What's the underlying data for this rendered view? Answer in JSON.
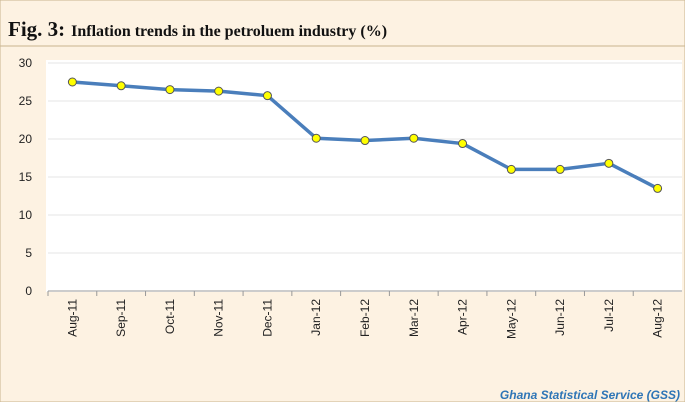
{
  "chart_data": {
    "type": "line",
    "figure_label": "Fig. 3:",
    "title": "Inflation trends in the petroluem industry (%)",
    "source": "Ghana Statistical Service (GSS)",
    "categories": [
      "Aug-11",
      "Sep-11",
      "Oct-11",
      "Nov-11",
      "Dec-11",
      "Jan-12",
      "Feb-12",
      "Mar-12",
      "Apr-12",
      "May-12",
      "Jun-12",
      "Jul-12",
      "Aug-12"
    ],
    "series": [
      {
        "color": "#4a7ebb",
        "marker_color": "#ffff00",
        "values": [
          27.5,
          27.0,
          26.5,
          26.3,
          25.7,
          20.1,
          19.8,
          20.1,
          19.4,
          16.0,
          16.0,
          16.8,
          13.5
        ]
      }
    ],
    "ylim": [
      0,
      30
    ],
    "yticks": [
      0,
      5,
      10,
      15,
      20,
      25,
      30
    ],
    "grid": true
  }
}
